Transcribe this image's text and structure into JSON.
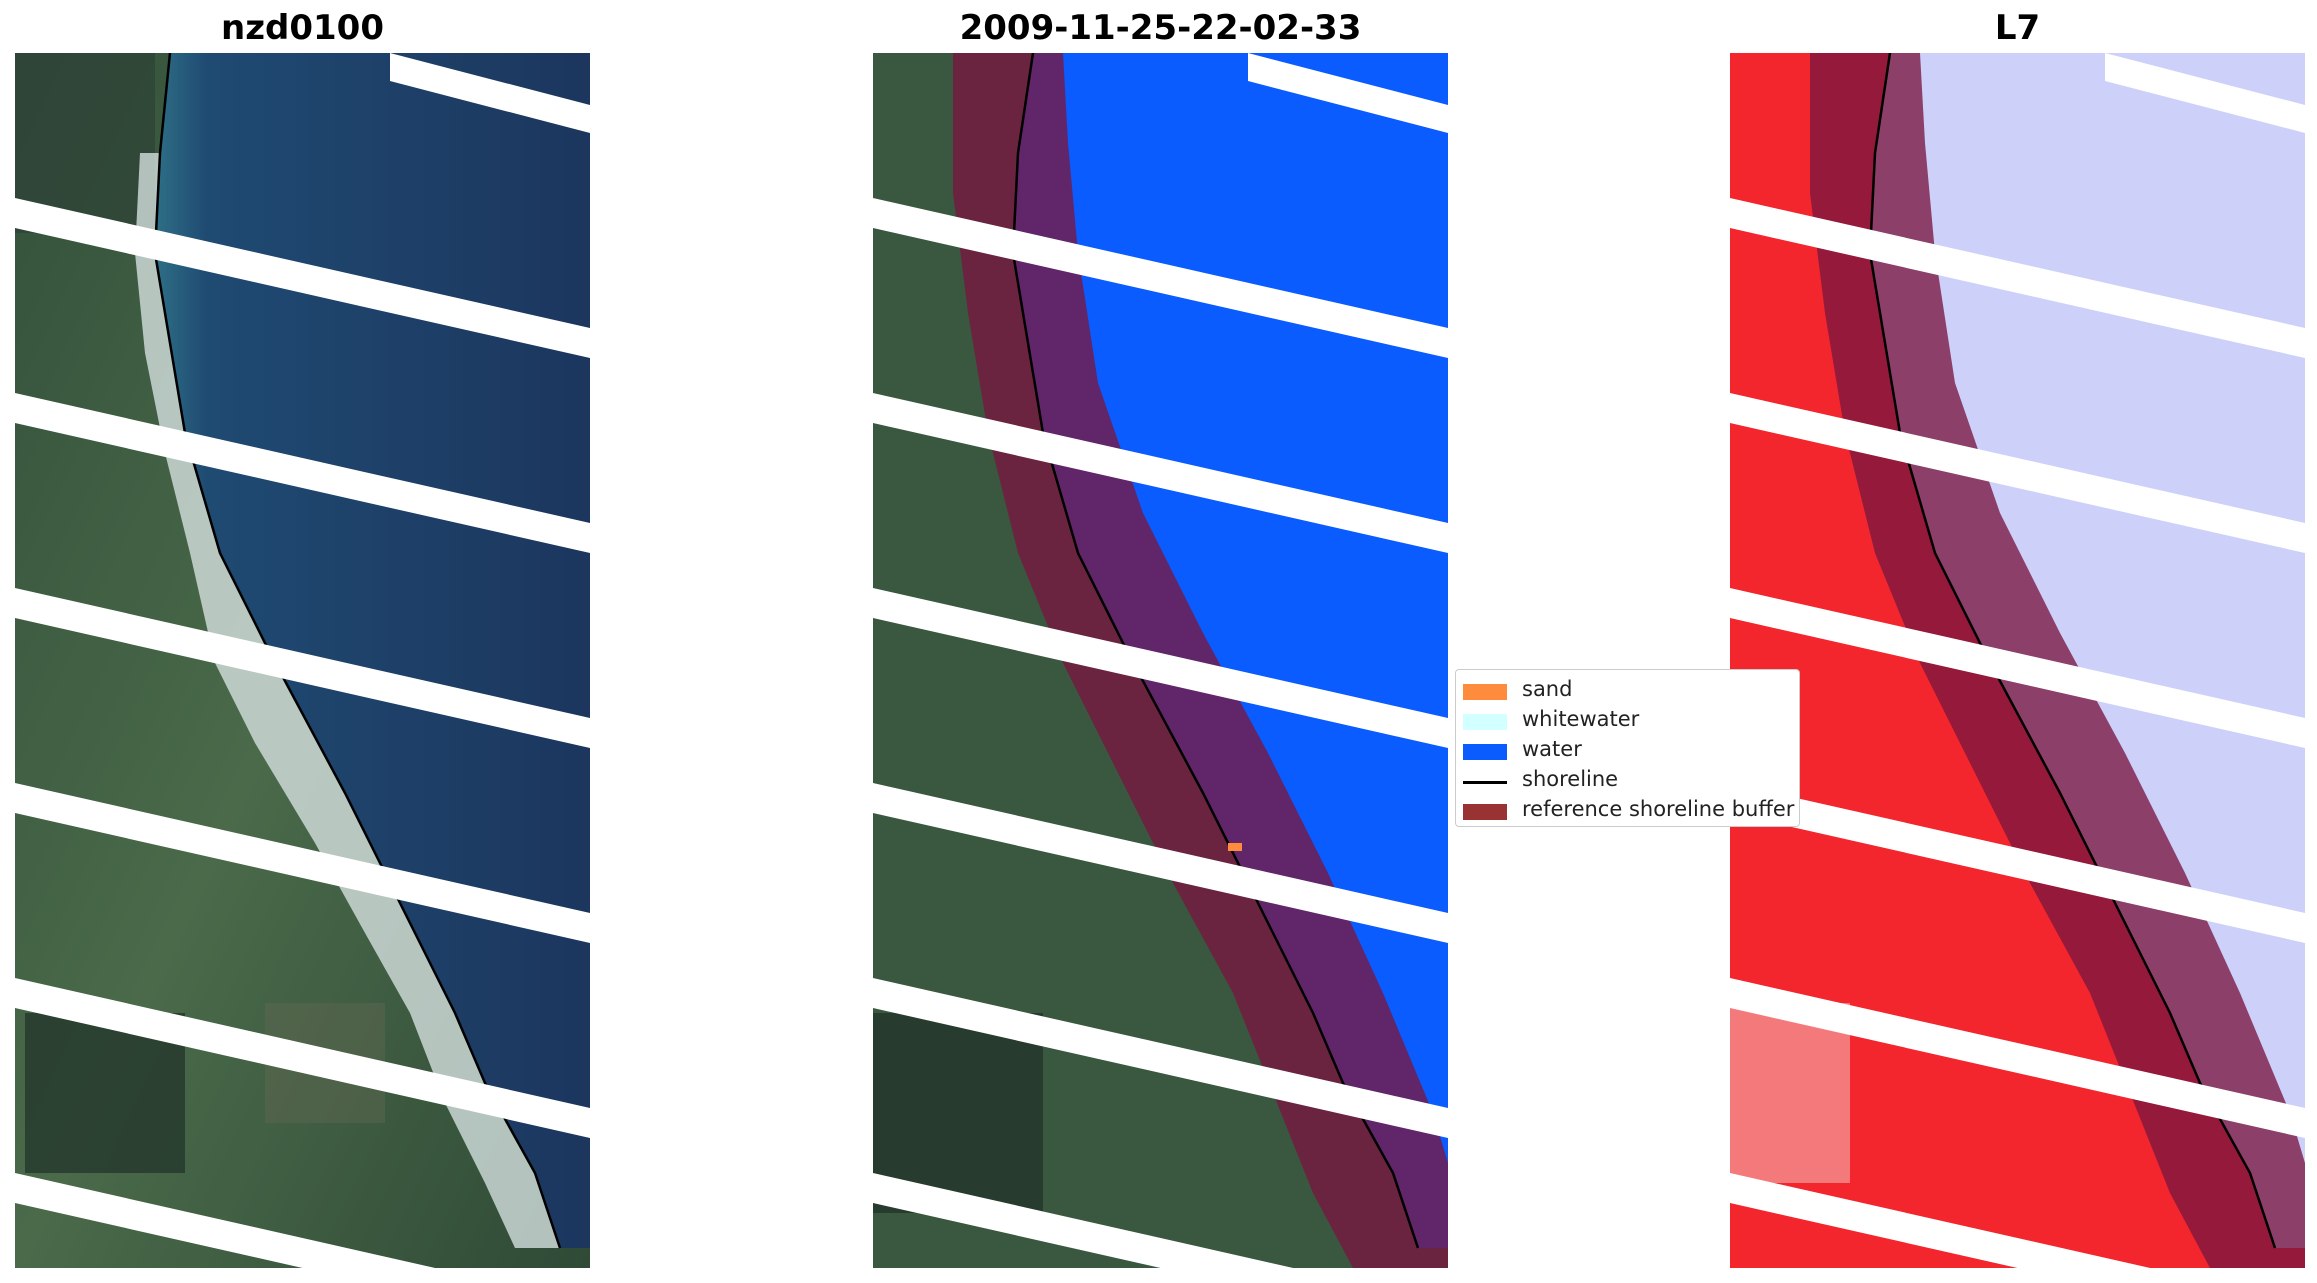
{
  "panels": [
    {
      "title": "nzd0100"
    },
    {
      "title": "2009-11-25-22-02-33"
    },
    {
      "title": "L7"
    }
  ],
  "legend": [
    {
      "label": "sand",
      "color": "#ff8c3c",
      "kind": "patch"
    },
    {
      "label": "whitewater",
      "color": "#d2ffff",
      "kind": "patch"
    },
    {
      "label": "water",
      "color": "#0066ff",
      "kind": "patch"
    },
    {
      "label": "shoreline",
      "color": "#000000",
      "kind": "line"
    },
    {
      "label": "reference shoreline buffer",
      "color": "#993333",
      "kind": "patch"
    }
  ],
  "colors": {
    "land": "#3f5c45",
    "land_dark": "#28392e",
    "sea_rgb": "#203a63",
    "surf": "#dfe9ea",
    "water_class": "#0a5cff",
    "buffer": "#7a1640",
    "index_land": "#f2262c",
    "index_water": "#cdd1fa",
    "gap": "#ffffff"
  }
}
